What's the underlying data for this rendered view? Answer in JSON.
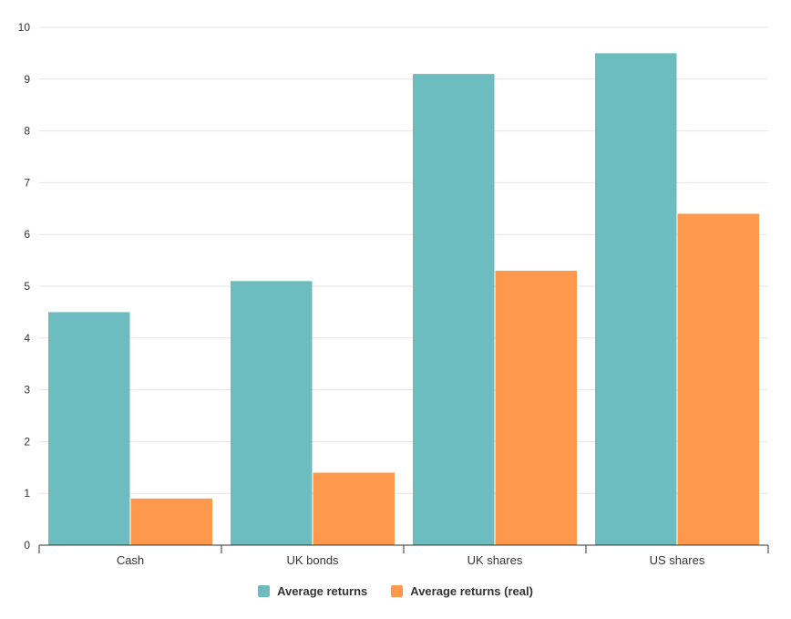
{
  "chart_data": {
    "type": "bar",
    "categories": [
      "Cash",
      "UK bonds",
      "UK shares",
      "US shares"
    ],
    "series": [
      {
        "name": "Average returns",
        "color": "#6dbcbf",
        "values": [
          4.5,
          5.1,
          9.1,
          9.5
        ]
      },
      {
        "name": "Average returns (real)",
        "color": "#fd984c",
        "values": [
          0.9,
          1.4,
          5.3,
          6.4
        ]
      }
    ],
    "y_ticks": [
      "0",
      "1",
      "2",
      "3",
      "4",
      "5",
      "6",
      "7",
      "8",
      "9",
      "10"
    ],
    "ylim": [
      0,
      10
    ],
    "grid": true,
    "legend_position": "bottom-center"
  }
}
